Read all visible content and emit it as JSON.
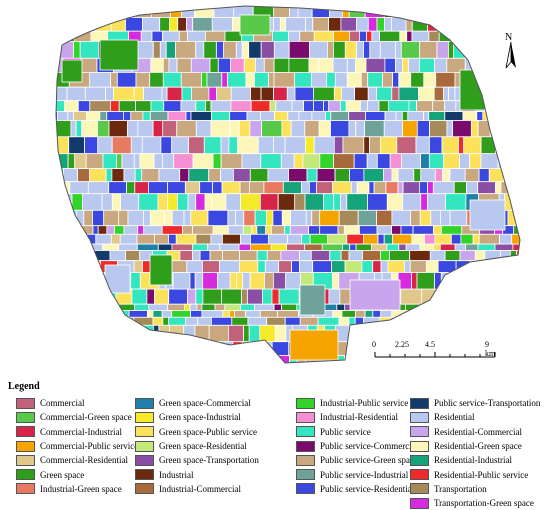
{
  "north_label": "N",
  "scale": {
    "ticks": [
      "0",
      "2.25",
      "4.5",
      "9 km"
    ]
  },
  "legend": {
    "title": "Legend",
    "items": [
      {
        "label": "Commercial",
        "color": "#c2617a"
      },
      {
        "label": "Commercial-Green space",
        "color": "#59c94a"
      },
      {
        "label": "Commercial-Industrial",
        "color": "#d9244a"
      },
      {
        "label": "Commercial-Public service",
        "color": "#f5a400"
      },
      {
        "label": "Commercial-Residential",
        "color": "#e0c78a"
      },
      {
        "label": "Green space",
        "color": "#2f9e1b"
      },
      {
        "label": "Industrial-Green space",
        "color": "#e77a60"
      },
      {
        "label": "Green space-Commercial",
        "color": "#1f7fa8"
      },
      {
        "label": "Green space-Industrial",
        "color": "#f4ea2a"
      },
      {
        "label": "Green space-Public service",
        "color": "#fce15a"
      },
      {
        "label": "Green space-Residential",
        "color": "#c4e87a"
      },
      {
        "label": "Green space-Transportation",
        "color": "#8a4fa5"
      },
      {
        "label": "Industrial",
        "color": "#6b2a0e"
      },
      {
        "label": "Industrial-Commercial",
        "color": "#a86a3c"
      },
      {
        "label": "Industrial-Public service",
        "color": "#33d42a"
      },
      {
        "label": "Industrial-Residential",
        "color": "#f58fd4"
      },
      {
        "label": "Public service",
        "color": "#33e6c0"
      },
      {
        "label": "Public service-Commercial",
        "color": "#7a0a6b"
      },
      {
        "label": "Public service-Green space",
        "color": "#c9a77f"
      },
      {
        "label": "Public service-Industrial",
        "color": "#6fa39a"
      },
      {
        "label": "Public service-Residential",
        "color": "#3a47e0"
      },
      {
        "label": "Public service-Transportation",
        "color": "#123a6b"
      },
      {
        "label": "Residential",
        "color": "#b8c8ee"
      },
      {
        "label": "Residential-Commercial",
        "color": "#c9a5ee"
      },
      {
        "label": "Residential-Green space",
        "color": "#fcf7b8"
      },
      {
        "label": "Residential-Industrial",
        "color": "#15a37a"
      },
      {
        "label": "Residential-Public service",
        "color": "#ee2a2a"
      },
      {
        "label": "Transportation",
        "color": "#a68a5a"
      },
      {
        "label": "Transportation-Green space",
        "color": "#d62ae0"
      }
    ]
  }
}
